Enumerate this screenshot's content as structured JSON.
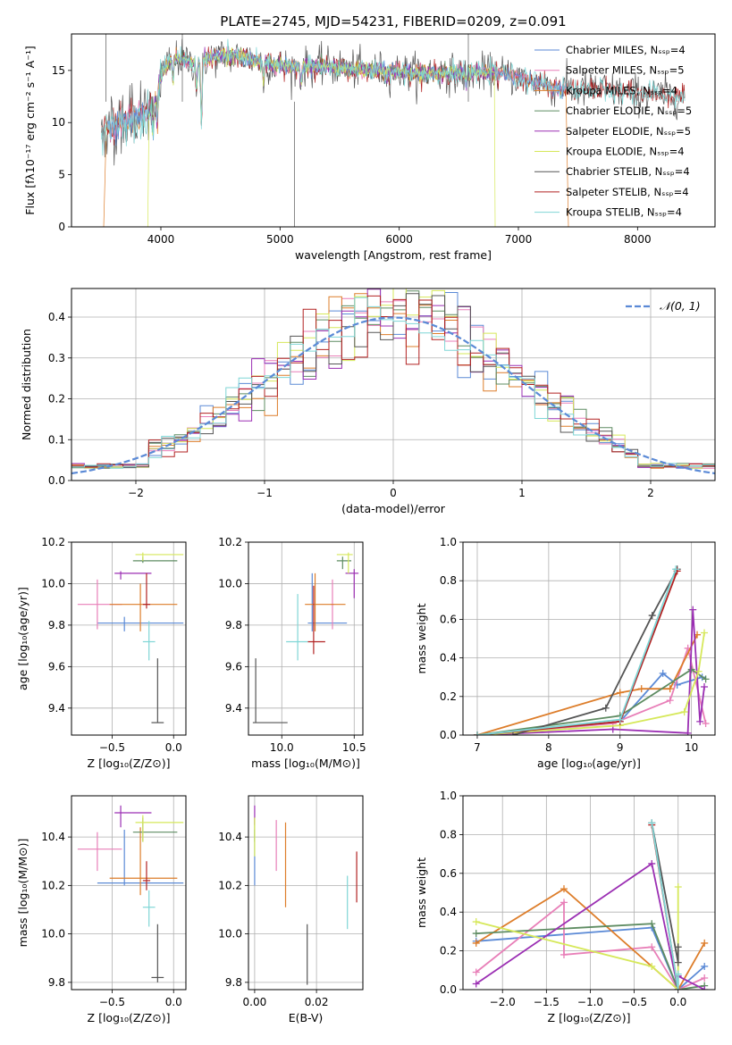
{
  "colors": {
    "chabrier_miles": "#5b8ad6",
    "salpeter_miles": "#e87fb8",
    "kroupa_miles": "#dd7d2a",
    "chabrier_elodie": "#5e8c62",
    "salpeter_elodie": "#9b2fb3",
    "kroupa_elodie": "#d6e85a",
    "chabrier_stelib": "#555555",
    "salpeter_stelib": "#b22222",
    "kroupa_stelib": "#7fd6d6",
    "grid": "#b0b0b0"
  },
  "chart_data": [
    {
      "id": "spectrum",
      "type": "line",
      "title": "PLATE=2745, MJD=54231, FIBERID=0209, z=0.091",
      "xlabel": "wavelength [Angstrom, rest frame]",
      "ylabel": "Flux [fλ10⁻¹⁷ erg cm⁻² s⁻¹ A⁻¹]",
      "xlim": [
        3250,
        8650
      ],
      "ylim": [
        0,
        18.5
      ],
      "xticks": [
        4000,
        5000,
        6000,
        7000,
        8000
      ],
      "yticks": [
        0,
        5,
        10,
        15
      ],
      "legend_position": "upper right",
      "legend": [
        {
          "label": "Chabrier MILES, Nₛₛₚ=4",
          "color_key": "chabrier_miles"
        },
        {
          "label": "Salpeter MILES, Nₛₛₚ=5",
          "color_key": "salpeter_miles"
        },
        {
          "label": "Kroupa MILES, Nₛₛₚ=4",
          "color_key": "kroupa_miles"
        },
        {
          "label": "Chabrier ELODIE, Nₛₛₚ=5",
          "color_key": "chabrier_elodie"
        },
        {
          "label": "Salpeter ELODIE, Nₛₛₚ=5",
          "color_key": "salpeter_elodie"
        },
        {
          "label": "Kroupa ELODIE, Nₛₛₚ=4",
          "color_key": "kroupa_elodie"
        },
        {
          "label": "Chabrier STELIB, Nₛₛₚ=4",
          "color_key": "chabrier_stelib"
        },
        {
          "label": "Salpeter STELIB, Nₛₛₚ=4",
          "color_key": "salpeter_stelib"
        },
        {
          "label": "Kroupa STELIB, Nₛₛₚ=4",
          "color_key": "kroupa_stelib"
        }
      ],
      "continuum": [
        [
          3500,
          8.7
        ],
        [
          3550,
          9.6
        ],
        [
          3650,
          9.8
        ],
        [
          3700,
          10.1
        ],
        [
          3800,
          10.6
        ],
        [
          3900,
          10.8
        ],
        [
          3950,
          11.8
        ],
        [
          4000,
          14.6
        ],
        [
          4100,
          16.2
        ],
        [
          4200,
          16.0
        ],
        [
          4300,
          15.6
        ],
        [
          4400,
          16.2
        ],
        [
          4500,
          16.4
        ],
        [
          4700,
          16.3
        ],
        [
          4900,
          15.6
        ],
        [
          5100,
          15.3
        ],
        [
          5300,
          15.4
        ],
        [
          5500,
          15.3
        ],
        [
          5700,
          15.0
        ],
        [
          5900,
          15.0
        ],
        [
          6100,
          14.8
        ],
        [
          6300,
          14.8
        ],
        [
          6500,
          14.7
        ],
        [
          6700,
          14.8
        ],
        [
          6900,
          14.6
        ],
        [
          7100,
          14.0
        ],
        [
          7300,
          13.4
        ],
        [
          7500,
          13.1
        ],
        [
          7700,
          13.2
        ],
        [
          7900,
          12.9
        ],
        [
          8100,
          12.7
        ],
        [
          8300,
          12.6
        ],
        [
          8400,
          12.4
        ]
      ],
      "absorption_lines": [
        [
          3934,
          9.2
        ],
        [
          3968,
          9.5
        ],
        [
          4102,
          13.6
        ],
        [
          4300,
          13.0
        ],
        [
          4340,
          8.7
        ],
        [
          4861,
          13.6
        ],
        [
          5175,
          13.8
        ],
        [
          5892,
          14.0
        ],
        [
          6563,
          13.2
        ]
      ]
    },
    {
      "id": "residuals",
      "type": "histogram",
      "xlabel": "(data-model)/error",
      "ylabel": "Normed distribution",
      "xlim": [
        -2.5,
        2.5
      ],
      "ylim": [
        0,
        0.47
      ],
      "xticks": [
        -2,
        -1,
        0,
        1,
        2
      ],
      "yticks": [
        0.0,
        0.1,
        0.2,
        0.3,
        0.4
      ],
      "reference_label": "𝒩(0, 1)",
      "bin_width": 0.1
    },
    {
      "id": "age_vs_Z",
      "type": "errorbar",
      "xlabel": "Z [log₁₀(Z/Z⊙)]",
      "ylabel": "age  [log₁₀(age/yr)]",
      "xlim": [
        -0.83,
        0.1
      ],
      "ylim": [
        9.27,
        10.2
      ],
      "xticks": [
        -0.5,
        0.0
      ],
      "yticks": [
        9.4,
        9.6,
        9.8,
        10.0,
        10.2
      ],
      "points": [
        {
          "k": "chabrier_miles",
          "x": -0.4,
          "y": 9.81,
          "ex": [
            -0.62,
            0.08
          ],
          "ey": [
            9.77,
            9.84
          ]
        },
        {
          "k": "salpeter_miles",
          "x": -0.62,
          "y": 9.9,
          "ex": [
            -0.78,
            -0.42
          ],
          "ey": [
            9.78,
            10.02
          ]
        },
        {
          "k": "kroupa_miles",
          "x": -0.27,
          "y": 9.9,
          "ex": [
            -0.52,
            0.03
          ],
          "ey": [
            9.77,
            10.0
          ]
        },
        {
          "k": "chabrier_elodie",
          "x": -0.25,
          "y": 10.11,
          "ex": [
            -0.33,
            0.03
          ],
          "ey": [
            10.1,
            10.13
          ]
        },
        {
          "k": "salpeter_elodie",
          "x": -0.43,
          "y": 10.05,
          "ex": [
            -0.48,
            -0.18
          ],
          "ey": [
            10.02,
            10.06
          ]
        },
        {
          "k": "kroupa_elodie",
          "x": -0.25,
          "y": 10.14,
          "ex": [
            -0.31,
            0.08
          ],
          "ey": [
            10.11,
            10.15
          ]
        },
        {
          "k": "chabrier_stelib",
          "x": -0.13,
          "y": 9.33,
          "ex": [
            -0.18,
            -0.08
          ],
          "ey": [
            9.33,
            9.64
          ]
        },
        {
          "k": "salpeter_stelib",
          "x": -0.22,
          "y": 9.9,
          "ex": [
            -0.25,
            -0.19
          ],
          "ey": [
            9.88,
            10.05
          ]
        },
        {
          "k": "kroupa_stelib",
          "x": -0.2,
          "y": 9.72,
          "ex": [
            -0.25,
            -0.15
          ],
          "ey": [
            9.63,
            9.82
          ]
        }
      ]
    },
    {
      "id": "age_vs_mass",
      "type": "errorbar",
      "xlabel": "mass [log₁₀(M/M⊙)]",
      "xlim": [
        9.77,
        10.56
      ],
      "ylim": [
        9.27,
        10.2
      ],
      "xticks": [
        10.0,
        10.5
      ],
      "yticks": [
        9.4,
        9.6,
        9.8,
        10.0,
        10.2
      ],
      "points": [
        {
          "k": "chabrier_miles",
          "x": 10.21,
          "y": 9.81,
          "ex": [
            10.18,
            10.45
          ],
          "ey": [
            9.77,
            10.05
          ]
        },
        {
          "k": "salpeter_miles",
          "x": 10.35,
          "y": 9.9,
          "ex": [
            10.34,
            10.36
          ],
          "ey": [
            9.78,
            10.02
          ]
        },
        {
          "k": "kroupa_miles",
          "x": 10.23,
          "y": 9.9,
          "ex": [
            10.16,
            10.44
          ],
          "ey": [
            9.77,
            10.05
          ]
        },
        {
          "k": "chabrier_elodie",
          "x": 10.42,
          "y": 10.11,
          "ex": [
            10.38,
            10.48
          ],
          "ey": [
            10.07,
            10.13
          ]
        },
        {
          "k": "salpeter_elodie",
          "x": 10.5,
          "y": 10.05,
          "ex": [
            10.44,
            10.53
          ],
          "ey": [
            9.93,
            10.07
          ]
        },
        {
          "k": "kroupa_elodie",
          "x": 10.46,
          "y": 10.14,
          "ex": [
            10.38,
            10.49
          ],
          "ey": [
            10.05,
            10.15
          ]
        },
        {
          "k": "chabrier_stelib",
          "x": 9.82,
          "y": 9.33,
          "ex": [
            9.8,
            10.04
          ],
          "ey": [
            9.33,
            9.64
          ]
        },
        {
          "k": "salpeter_stelib",
          "x": 10.22,
          "y": 9.72,
          "ex": [
            10.18,
            10.3
          ],
          "ey": [
            9.66,
            9.99
          ]
        },
        {
          "k": "kroupa_stelib",
          "x": 10.11,
          "y": 9.72,
          "ex": [
            10.03,
            10.18
          ],
          "ey": [
            9.63,
            9.95
          ]
        }
      ]
    },
    {
      "id": "weight_vs_age",
      "type": "line",
      "xlabel": "age  [log₁₀(age/yr)]",
      "ylabel": "mass weight",
      "xlim": [
        6.8,
        10.33
      ],
      "ylim": [
        0,
        1.0
      ],
      "xticks": [
        7,
        8,
        9,
        10
      ],
      "yticks": [
        0.0,
        0.2,
        0.4,
        0.6,
        0.8,
        1.0
      ],
      "series": [
        {
          "k": "chabrier_miles",
          "x": [
            7.0,
            9.0,
            9.6,
            9.8,
            10.15
          ],
          "y": [
            0.0,
            0.07,
            0.32,
            0.26,
            0.3
          ]
        },
        {
          "k": "salpeter_miles",
          "x": [
            7.0,
            8.9,
            9.7,
            9.95,
            10.2
          ],
          "y": [
            0.0,
            0.06,
            0.18,
            0.45,
            0.06
          ]
        },
        {
          "k": "kroupa_miles",
          "x": [
            7.0,
            9.0,
            9.3,
            9.7,
            10.08
          ],
          "y": [
            0.0,
            0.22,
            0.24,
            0.24,
            0.52
          ]
        },
        {
          "k": "chabrier_elodie",
          "x": [
            7.0,
            9.0,
            10.0,
            10.2
          ],
          "y": [
            0.0,
            0.1,
            0.34,
            0.29
          ]
        },
        {
          "k": "salpeter_elodie",
          "x": [
            7.0,
            8.9,
            9.95,
            10.02,
            10.12,
            10.18
          ],
          "y": [
            0.0,
            0.03,
            0.01,
            0.65,
            0.07,
            0.25
          ]
        },
        {
          "k": "kroupa_elodie",
          "x": [
            7.0,
            9.0,
            9.9,
            10.1,
            10.18
          ],
          "y": [
            0.0,
            0.05,
            0.12,
            0.33,
            0.53
          ]
        },
        {
          "k": "chabrier_stelib",
          "x": [
            7.5,
            8.8,
            9.45,
            9.8
          ],
          "y": [
            0.0,
            0.14,
            0.62,
            0.86
          ]
        },
        {
          "k": "salpeter_stelib",
          "x": [
            7.0,
            9.0,
            9.8
          ],
          "y": [
            0.0,
            0.07,
            0.85
          ]
        },
        {
          "k": "kroupa_stelib",
          "x": [
            7.0,
            9.0,
            9.78
          ],
          "y": [
            0.0,
            0.08,
            0.86
          ]
        }
      ]
    },
    {
      "id": "mass_vs_Z",
      "type": "errorbar",
      "xlabel": "Z [log₁₀(Z/Z⊙)]",
      "ylabel": "mass [log₁₀(M/M⊙)]",
      "xlim": [
        -0.83,
        0.1
      ],
      "ylim": [
        9.77,
        10.57
      ],
      "xticks": [
        -0.5,
        0.0
      ],
      "yticks": [
        9.8,
        10.0,
        10.2,
        10.4
      ],
      "points": [
        {
          "k": "chabrier_miles",
          "x": -0.4,
          "y": 10.21,
          "ex": [
            -0.62,
            0.08
          ],
          "ey": [
            10.2,
            10.43
          ]
        },
        {
          "k": "salpeter_miles",
          "x": -0.62,
          "y": 10.35,
          "ex": [
            -0.78,
            -0.42
          ],
          "ey": [
            10.26,
            10.42
          ]
        },
        {
          "k": "kroupa_miles",
          "x": -0.27,
          "y": 10.23,
          "ex": [
            -0.52,
            0.03
          ],
          "ey": [
            10.16,
            10.44
          ]
        },
        {
          "k": "chabrier_elodie",
          "x": -0.25,
          "y": 10.42,
          "ex": [
            -0.33,
            0.03
          ],
          "ey": [
            10.38,
            10.48
          ]
        },
        {
          "k": "salpeter_elodie",
          "x": -0.43,
          "y": 10.5,
          "ex": [
            -0.48,
            -0.18
          ],
          "ey": [
            10.44,
            10.53
          ]
        },
        {
          "k": "kroupa_elodie",
          "x": -0.25,
          "y": 10.46,
          "ex": [
            -0.31,
            0.08
          ],
          "ey": [
            10.38,
            10.49
          ]
        },
        {
          "k": "chabrier_stelib",
          "x": -0.13,
          "y": 9.82,
          "ex": [
            -0.18,
            -0.08
          ],
          "ey": [
            9.8,
            10.04
          ]
        },
        {
          "k": "salpeter_stelib",
          "x": -0.22,
          "y": 10.22,
          "ex": [
            -0.25,
            -0.19
          ],
          "ey": [
            10.18,
            10.3
          ]
        },
        {
          "k": "kroupa_stelib",
          "x": -0.2,
          "y": 10.11,
          "ex": [
            -0.25,
            -0.15
          ],
          "ey": [
            10.03,
            10.18
          ]
        }
      ]
    },
    {
      "id": "mass_vs_ebv",
      "type": "errorbar",
      "xlabel": "E(B-V)",
      "xlim": [
        -0.002,
        0.035
      ],
      "ylim": [
        9.77,
        10.57
      ],
      "xticks": [
        0.0,
        0.02
      ],
      "yticks": [
        9.8,
        10.0,
        10.2,
        10.4
      ],
      "points": [
        {
          "k": "chabrier_miles",
          "x": 0.0,
          "y": 10.21,
          "ex": [
            0.0,
            0.0
          ],
          "ey": [
            10.2,
            10.43
          ]
        },
        {
          "k": "salpeter_miles",
          "x": 0.007,
          "y": 10.35,
          "ex": [
            0.007,
            0.007
          ],
          "ey": [
            10.26,
            10.47
          ]
        },
        {
          "k": "kroupa_miles",
          "x": 0.01,
          "y": 10.23,
          "ex": [
            0.01,
            0.01
          ],
          "ey": [
            10.11,
            10.46
          ]
        },
        {
          "k": "chabrier_elodie",
          "x": 0.0,
          "y": 10.42,
          "ex": [
            0.0,
            0.0
          ],
          "ey": [
            10.38,
            10.48
          ]
        },
        {
          "k": "salpeter_elodie",
          "x": 0.0,
          "y": 10.5,
          "ex": [
            0.0,
            0.0
          ],
          "ey": [
            10.45,
            10.53
          ]
        },
        {
          "k": "kroupa_elodie",
          "x": 0.0,
          "y": 10.4,
          "ex": [
            0.0,
            0.0
          ],
          "ey": [
            10.32,
            10.48
          ]
        },
        {
          "k": "chabrier_stelib",
          "x": 0.017,
          "y": 9.9,
          "ex": [
            0.017,
            0.017
          ],
          "ey": [
            9.79,
            10.04
          ]
        },
        {
          "k": "salpeter_stelib",
          "x": 0.033,
          "y": 10.22,
          "ex": [
            0.033,
            0.033
          ],
          "ey": [
            10.13,
            10.34
          ]
        },
        {
          "k": "kroupa_stelib",
          "x": 0.03,
          "y": 10.1,
          "ex": [
            0.03,
            0.03
          ],
          "ey": [
            10.02,
            10.24
          ]
        }
      ]
    },
    {
      "id": "weight_vs_Z",
      "type": "line",
      "xlabel": "Z [log₁₀(Z/Z⊙)]",
      "ylabel": "mass weight",
      "xlim": [
        -2.45,
        0.42
      ],
      "ylim": [
        0,
        1.0
      ],
      "xticks": [
        -2.0,
        -1.5,
        -1.0,
        -0.5,
        0.0
      ],
      "yticks": [
        0.0,
        0.2,
        0.4,
        0.6,
        0.8,
        1.0
      ],
      "series": [
        {
          "k": "chabrier_miles",
          "x": [
            -2.3,
            -0.3,
            0.0,
            0.3
          ],
          "y": [
            0.25,
            0.32,
            0.0,
            0.12
          ]
        },
        {
          "k": "salpeter_miles",
          "x": [
            -2.3,
            -1.3,
            -1.3,
            -0.3,
            0.0,
            0.3
          ],
          "y": [
            0.09,
            0.45,
            0.18,
            0.22,
            0.0,
            0.06
          ]
        },
        {
          "k": "kroupa_miles",
          "x": [
            -2.3,
            -1.3,
            0.0,
            0.3
          ],
          "y": [
            0.24,
            0.52,
            0.0,
            0.24
          ]
        },
        {
          "k": "chabrier_elodie",
          "x": [
            -2.3,
            -0.3,
            0.0,
            0.3
          ],
          "y": [
            0.29,
            0.34,
            0.0,
            0.02
          ]
        },
        {
          "k": "salpeter_elodie",
          "x": [
            -2.3,
            -0.3,
            0.0,
            0.0,
            0.3
          ],
          "y": [
            0.03,
            0.65,
            0.0,
            0.07,
            0.0
          ]
        },
        {
          "k": "kroupa_elodie",
          "x": [
            -2.3,
            -0.3,
            0.0,
            0.0
          ],
          "y": [
            0.35,
            0.12,
            0.0,
            0.53
          ]
        },
        {
          "k": "chabrier_stelib",
          "x": [
            -0.3,
            0.0,
            0.0
          ],
          "y": [
            0.86,
            0.14,
            0.22
          ]
        },
        {
          "k": "salpeter_stelib",
          "x": [
            -0.3,
            0.0
          ],
          "y": [
            0.85,
            0.0
          ]
        },
        {
          "k": "kroupa_stelib",
          "x": [
            -0.3,
            0.0,
            0.0
          ],
          "y": [
            0.86,
            0.0,
            0.08
          ]
        }
      ]
    }
  ]
}
